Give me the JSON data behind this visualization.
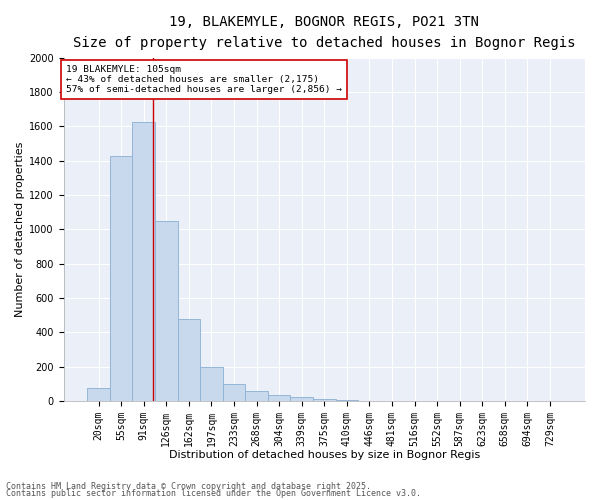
{
  "title1": "19, BLAKEMYLE, BOGNOR REGIS, PO21 3TN",
  "title2": "Size of property relative to detached houses in Bognor Regis",
  "xlabel": "Distribution of detached houses by size in Bognor Regis",
  "ylabel": "Number of detached properties",
  "categories": [
    "20sqm",
    "55sqm",
    "91sqm",
    "126sqm",
    "162sqm",
    "197sqm",
    "233sqm",
    "268sqm",
    "304sqm",
    "339sqm",
    "375sqm",
    "410sqm",
    "446sqm",
    "481sqm",
    "516sqm",
    "552sqm",
    "587sqm",
    "623sqm",
    "658sqm",
    "694sqm",
    "729sqm"
  ],
  "values": [
    75,
    1425,
    1625,
    1050,
    475,
    200,
    100,
    55,
    35,
    25,
    8,
    3,
    2,
    1,
    0,
    0,
    0,
    0,
    0,
    0,
    0
  ],
  "bar_color": "#c8d9ee",
  "bar_edge_color": "#8bafd4",
  "bar_edge_width": 0.6,
  "red_line_x": 2.42,
  "red_line_color": "#cc0000",
  "annotation_text": "19 BLAKEMYLE: 105sqm\n← 43% of detached houses are smaller (2,175)\n57% of semi-detached houses are larger (2,856) →",
  "annotation_box_color": "#ffffff",
  "annotation_box_edge": "#cc0000",
  "ylim": [
    0,
    2000
  ],
  "yticks": [
    0,
    200,
    400,
    600,
    800,
    1000,
    1200,
    1400,
    1600,
    1800,
    2000
  ],
  "footer1": "Contains HM Land Registry data © Crown copyright and database right 2025.",
  "footer2": "Contains public sector information licensed under the Open Government Licence v3.0.",
  "bg_color": "#ffffff",
  "plot_bg_color": "#eaeff8",
  "grid_color": "#ffffff",
  "title_fontsize": 10,
  "subtitle_fontsize": 8.5,
  "axis_label_fontsize": 8,
  "tick_fontsize": 7,
  "annotation_fontsize": 6.8,
  "footer_fontsize": 6
}
